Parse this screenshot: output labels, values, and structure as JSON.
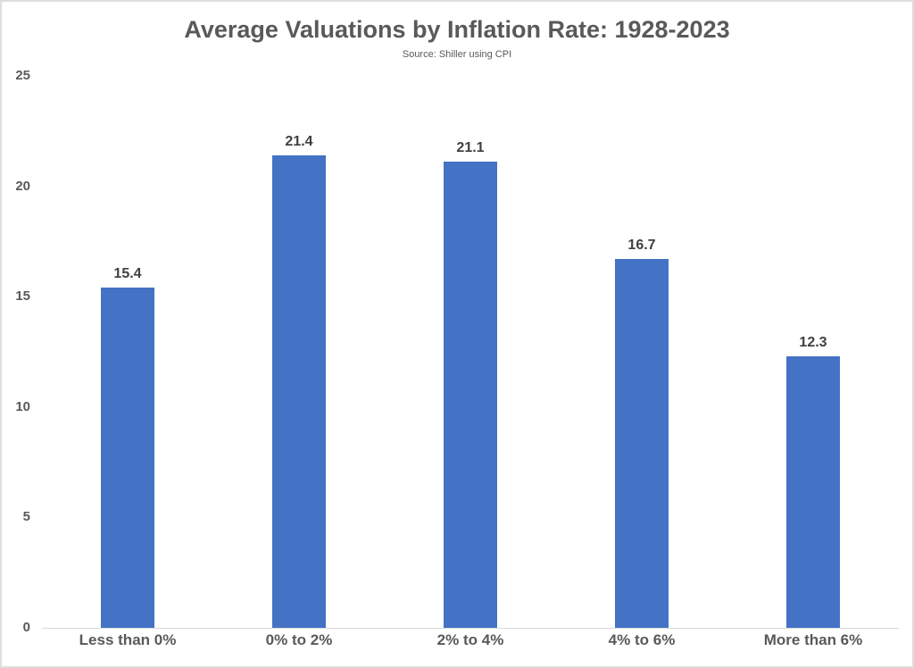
{
  "frame": {
    "background": "#ffffff",
    "border_color": "#dedede"
  },
  "chart_data": {
    "type": "bar",
    "title": "Average Valuations by Inflation Rate: 1928-2023",
    "subtitle": "Source: Shiller using CPI",
    "categories": [
      "Less than 0%",
      "0% to 2%",
      "2% to 4%",
      "4% to 6%",
      "More than 6%"
    ],
    "values": [
      15.4,
      21.4,
      21.1,
      16.7,
      12.3
    ],
    "value_labels": [
      "15.4",
      "21.4",
      "21.1",
      "16.7",
      "12.3"
    ],
    "yticks": [
      0,
      5,
      10,
      15,
      20,
      25
    ],
    "ylim": [
      0,
      25
    ],
    "xlabel": "",
    "ylabel": "",
    "grid": false,
    "legend_position": "none",
    "bar_color": "#4472C4",
    "axis_line_color": "#d9d9d9",
    "text_color": "#595959",
    "data_label_color": "#404040"
  }
}
